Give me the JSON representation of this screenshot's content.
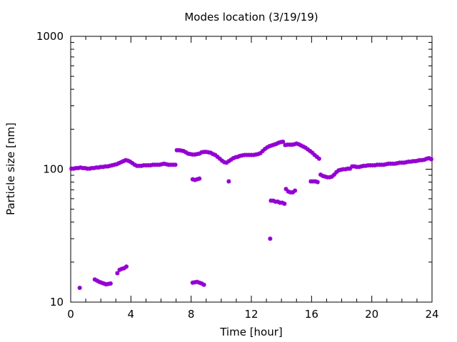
{
  "chart_data": {
    "type": "scatter",
    "title": "Modes location (3/19/19)",
    "xlabel": "Time [hour]",
    "ylabel": "Particle size [nm]",
    "xlim": [
      0,
      24
    ],
    "ylim": [
      10,
      1000
    ],
    "yscale": "log",
    "xticks": [
      0,
      4,
      8,
      12,
      16,
      20,
      24
    ],
    "xtick_labels": [
      "0",
      "4",
      "8",
      "12",
      "16",
      "20",
      "24"
    ],
    "yticks": [
      10,
      100,
      1000
    ],
    "ytick_labels": [
      "10",
      "100",
      "1000"
    ],
    "grid": false,
    "marker_color": "#9400D3",
    "series": [
      {
        "points": [
          [
            0.05,
            101
          ],
          [
            0.2,
            101
          ],
          [
            0.35,
            102
          ],
          [
            0.5,
            102
          ],
          [
            0.65,
            103
          ],
          [
            0.8,
            102
          ],
          [
            0.95,
            102
          ],
          [
            1.1,
            101
          ],
          [
            1.25,
            101
          ],
          [
            1.4,
            102
          ],
          [
            1.55,
            102
          ],
          [
            1.7,
            103
          ],
          [
            1.85,
            103
          ],
          [
            2.0,
            104
          ],
          [
            2.15,
            104
          ],
          [
            2.3,
            105
          ],
          [
            2.45,
            105
          ],
          [
            2.6,
            106
          ],
          [
            2.75,
            107
          ],
          [
            2.9,
            108
          ],
          [
            3.05,
            109
          ],
          [
            3.2,
            111
          ],
          [
            3.35,
            113
          ],
          [
            3.5,
            115
          ],
          [
            3.65,
            117
          ],
          [
            3.8,
            116
          ],
          [
            3.95,
            114
          ],
          [
            4.1,
            111
          ],
          [
            4.25,
            108
          ],
          [
            4.4,
            106
          ],
          [
            4.55,
            106
          ],
          [
            4.7,
            106
          ],
          [
            4.85,
            107
          ],
          [
            5.0,
            107
          ],
          [
            5.15,
            107
          ],
          [
            5.3,
            107
          ],
          [
            5.45,
            108
          ],
          [
            5.6,
            108
          ],
          [
            5.75,
            108
          ],
          [
            5.9,
            108
          ],
          [
            6.05,
            109
          ],
          [
            6.2,
            110
          ],
          [
            6.35,
            109
          ],
          [
            6.5,
            108
          ],
          [
            6.65,
            108
          ],
          [
            6.8,
            108
          ],
          [
            6.95,
            108
          ],
          [
            7.05,
            139
          ],
          [
            7.2,
            139
          ],
          [
            7.35,
            138
          ],
          [
            7.5,
            137
          ],
          [
            7.65,
            134
          ],
          [
            7.8,
            131
          ],
          [
            7.95,
            130
          ],
          [
            8.1,
            129
          ],
          [
            8.25,
            129
          ],
          [
            8.4,
            130
          ],
          [
            8.55,
            131
          ],
          [
            8.7,
            134
          ],
          [
            8.85,
            135
          ],
          [
            9.0,
            135
          ],
          [
            9.15,
            134
          ],
          [
            9.3,
            133
          ],
          [
            9.45,
            130
          ],
          [
            9.6,
            128
          ],
          [
            9.75,
            124
          ],
          [
            9.9,
            120
          ],
          [
            10.05,
            116
          ],
          [
            10.2,
            113
          ],
          [
            10.35,
            112
          ],
          [
            10.5,
            115
          ],
          [
            10.65,
            118
          ],
          [
            10.8,
            121
          ],
          [
            10.95,
            123
          ],
          [
            11.1,
            124
          ],
          [
            11.25,
            126
          ],
          [
            11.4,
            127
          ],
          [
            11.55,
            128
          ],
          [
            11.7,
            128
          ],
          [
            11.85,
            128
          ],
          [
            12.0,
            128
          ],
          [
            12.15,
            128
          ],
          [
            12.3,
            129
          ],
          [
            12.45,
            130
          ],
          [
            12.6,
            132
          ],
          [
            12.75,
            137
          ],
          [
            12.9,
            142
          ],
          [
            13.05,
            146
          ],
          [
            13.2,
            149
          ],
          [
            13.35,
            151
          ],
          [
            13.5,
            153
          ],
          [
            13.65,
            155
          ],
          [
            13.8,
            158
          ],
          [
            13.95,
            160
          ],
          [
            14.1,
            161
          ],
          [
            14.25,
            152
          ],
          [
            14.4,
            153
          ],
          [
            14.55,
            153
          ],
          [
            14.7,
            153
          ],
          [
            14.85,
            154
          ],
          [
            15.0,
            156
          ],
          [
            15.15,
            154
          ],
          [
            15.3,
            151
          ],
          [
            15.45,
            148
          ],
          [
            15.6,
            145
          ],
          [
            15.75,
            141
          ],
          [
            15.9,
            137
          ],
          [
            16.05,
            133
          ],
          [
            16.2,
            128
          ],
          [
            16.35,
            124
          ],
          [
            16.5,
            120
          ],
          [
            16.6,
            91
          ],
          [
            16.75,
            89
          ],
          [
            16.9,
            88
          ],
          [
            17.05,
            87
          ],
          [
            17.2,
            87
          ],
          [
            17.35,
            88
          ],
          [
            17.5,
            91
          ],
          [
            17.65,
            95
          ],
          [
            17.8,
            98
          ],
          [
            17.95,
            99
          ],
          [
            18.1,
            100
          ],
          [
            18.25,
            100
          ],
          [
            18.4,
            101
          ],
          [
            18.55,
            101
          ],
          [
            18.7,
            105
          ],
          [
            18.85,
            105
          ],
          [
            19.0,
            104
          ],
          [
            19.15,
            104
          ],
          [
            19.3,
            105
          ],
          [
            19.45,
            106
          ],
          [
            19.6,
            106
          ],
          [
            19.75,
            107
          ],
          [
            19.9,
            107
          ],
          [
            20.05,
            107
          ],
          [
            20.2,
            107
          ],
          [
            20.35,
            108
          ],
          [
            20.5,
            108
          ],
          [
            20.65,
            108
          ],
          [
            20.8,
            108
          ],
          [
            20.95,
            109
          ],
          [
            21.1,
            110
          ],
          [
            21.25,
            110
          ],
          [
            21.4,
            110
          ],
          [
            21.55,
            110
          ],
          [
            21.7,
            111
          ],
          [
            21.85,
            112
          ],
          [
            22.0,
            112
          ],
          [
            22.15,
            112
          ],
          [
            22.3,
            113
          ],
          [
            22.45,
            114
          ],
          [
            22.6,
            114
          ],
          [
            22.75,
            115
          ],
          [
            22.9,
            115
          ],
          [
            23.05,
            116
          ],
          [
            23.2,
            117
          ],
          [
            23.35,
            117
          ],
          [
            23.5,
            118
          ],
          [
            23.65,
            120
          ],
          [
            23.8,
            121
          ],
          [
            23.95,
            119
          ],
          [
            0.6,
            12.8
          ],
          [
            1.6,
            14.8
          ],
          [
            1.75,
            14.5
          ],
          [
            1.9,
            14.2
          ],
          [
            2.05,
            14.0
          ],
          [
            2.2,
            13.8
          ],
          [
            2.35,
            13.6
          ],
          [
            2.5,
            13.7
          ],
          [
            2.65,
            13.8
          ],
          [
            3.1,
            16.5
          ],
          [
            3.25,
            17.5
          ],
          [
            3.4,
            17.8
          ],
          [
            3.55,
            18.0
          ],
          [
            3.7,
            18.5
          ],
          [
            8.1,
            84
          ],
          [
            8.25,
            83
          ],
          [
            8.4,
            84
          ],
          [
            8.55,
            85
          ],
          [
            8.1,
            14.0
          ],
          [
            8.25,
            14.1
          ],
          [
            8.4,
            14.2
          ],
          [
            8.55,
            14.0
          ],
          [
            8.7,
            13.8
          ],
          [
            8.85,
            13.5
          ],
          [
            10.5,
            81
          ],
          [
            13.25,
            30
          ],
          [
            13.3,
            58
          ],
          [
            13.45,
            58
          ],
          [
            13.6,
            57
          ],
          [
            13.75,
            57
          ],
          [
            13.9,
            56
          ],
          [
            14.05,
            56
          ],
          [
            14.2,
            55
          ],
          [
            14.3,
            71
          ],
          [
            14.45,
            68
          ],
          [
            14.6,
            67
          ],
          [
            14.75,
            67
          ],
          [
            14.9,
            69
          ],
          [
            15.95,
            81
          ],
          [
            16.1,
            81
          ],
          [
            16.25,
            81
          ],
          [
            16.4,
            80
          ]
        ]
      }
    ]
  }
}
